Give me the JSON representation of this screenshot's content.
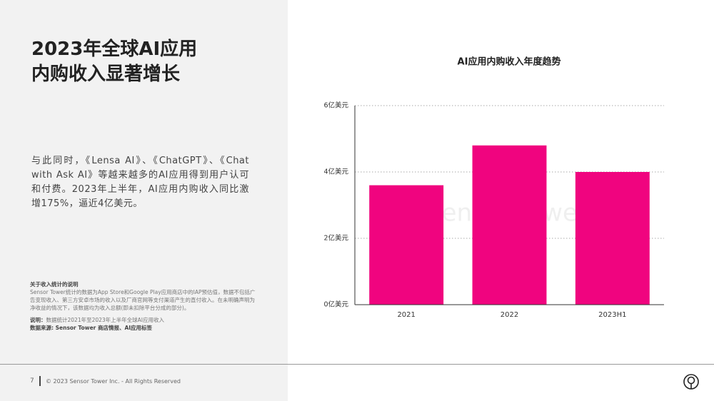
{
  "header": {
    "title_line1": "2023年全球AI应用",
    "title_line2": "内购收入显著增长"
  },
  "body": "与此同时，《Lensa AI》、《ChatGPT》、《Chat with Ask AI》等越来越多的AI应用得到用户认可和付费。2023年上半年，AI应用内购收入同比激增175%，逼近4亿美元。",
  "notes": {
    "heading": "关于收入统计的说明",
    "text": "Sensor Tower统计的数据为App Store和Google Play应用商店中的IAP预估值，数据不包括广告变现收入、第三方安卓市场的收入以及厂商官网等支付渠道产生的直付收入。在未明确声明为净收益的情况下，该数据均为收入总额(即未扣除平台分成的部分)。",
    "explain_label": "说明：",
    "explain_text": "数据统计2021年至2023年上半年全球AI应用收入",
    "source": "数据来源: Sensor Tower 商店情报、AI应用标签"
  },
  "footer": {
    "page": "7",
    "copyright": "© 2023 Sensor Tower Inc. - All Rights Reserved"
  },
  "watermark": "Sensor Tower",
  "chart_data": {
    "type": "bar",
    "title": "AI应用内购收入年度趋势",
    "categories": [
      "2021",
      "2022",
      "2023H1"
    ],
    "values": [
      3.6,
      4.8,
      4.0
    ],
    "color": "#f0047f",
    "ylim": [
      0,
      6
    ],
    "yticks": [
      {
        "value": 0,
        "label": "0亿美元"
      },
      {
        "value": 2,
        "label": "2亿美元"
      },
      {
        "value": 4,
        "label": "4亿美元"
      },
      {
        "value": 6,
        "label": "6亿美元"
      }
    ],
    "grid": true
  }
}
